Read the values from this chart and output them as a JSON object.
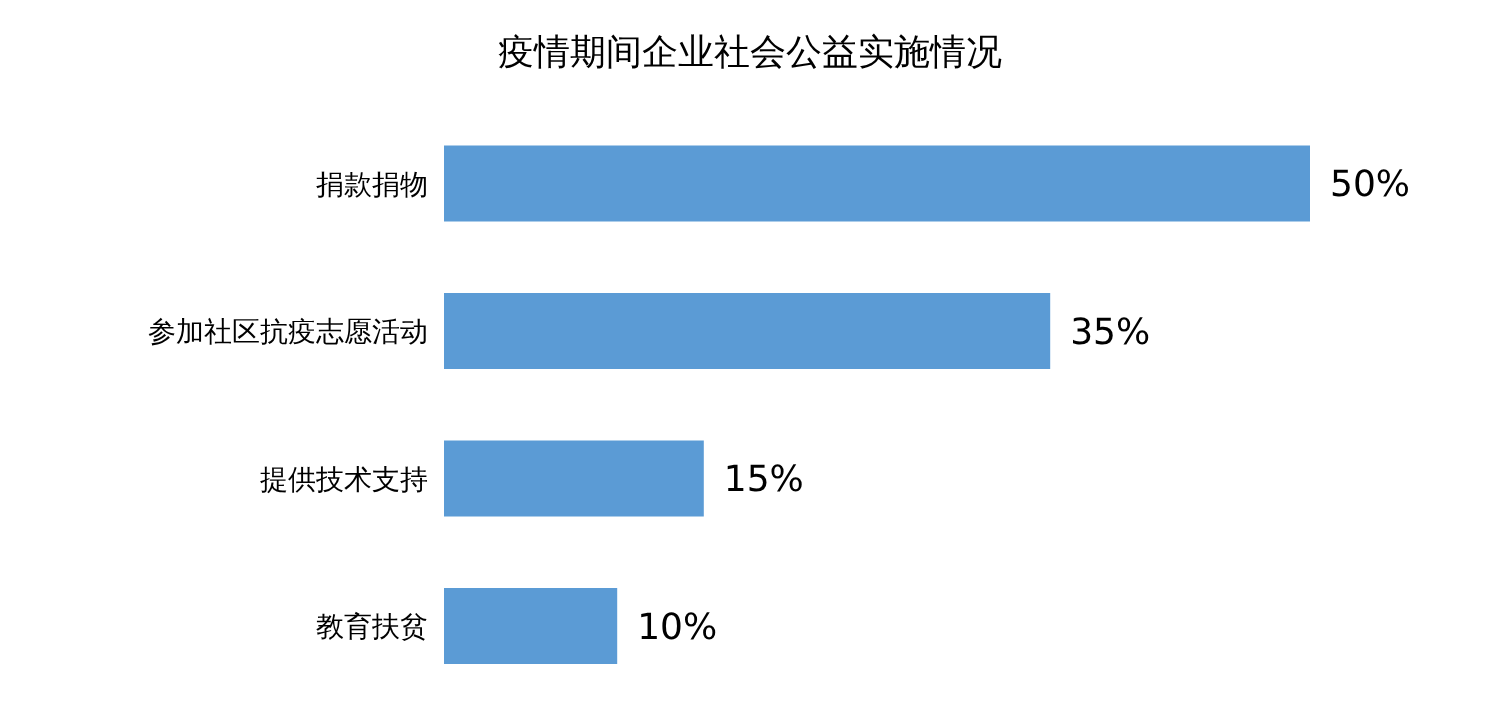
{
  "chart_data": {
    "type": "bar",
    "orientation": "horizontal",
    "title": "疫情期间企业社会公益实施情况",
    "categories": [
      "捐款捐物",
      "参加社区抗疫志愿活动",
      "提供技术支持",
      "教育扶贫"
    ],
    "values": [
      50,
      35,
      15,
      10
    ],
    "value_labels": [
      "50%",
      "35%",
      "15%",
      "10%"
    ],
    "color": "#5b9bd5"
  }
}
